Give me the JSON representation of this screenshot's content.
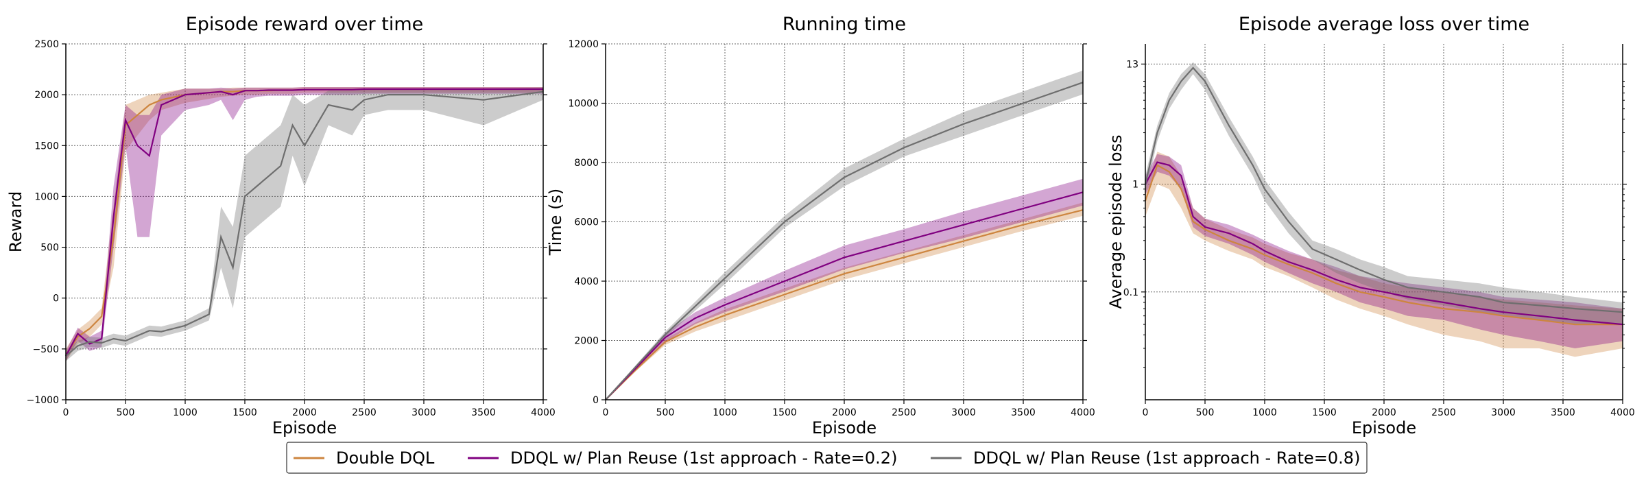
{
  "legend": [
    {
      "name": "Double DQL",
      "color": "#cd853f"
    },
    {
      "name": "DDQL w/ Plan Reuse (1st approach - Rate=0.2)",
      "color": "#800080"
    },
    {
      "name": "DDQL w/ Plan Reuse (1st approach - Rate=0.8)",
      "color": "#6e6e6e"
    }
  ],
  "chart_data": [
    {
      "type": "line",
      "title": "Episode reward over time",
      "xlabel": "Episode",
      "ylabel": "Reward",
      "xlim": [
        0,
        4000
      ],
      "ylim": [
        -1000,
        2500
      ],
      "xticks": [
        0,
        500,
        1000,
        1500,
        2000,
        2500,
        3000,
        3500,
        4000
      ],
      "yticks": [
        -1000,
        -500,
        0,
        500,
        1000,
        1500,
        2000,
        2500
      ],
      "ytick_labels": [
        "−1000",
        "−500",
        "0",
        "500",
        "1000",
        "1500",
        "2000",
        "2500"
      ],
      "grid": true,
      "x": [
        0,
        100,
        200,
        300,
        400,
        500,
        600,
        700,
        800,
        1000,
        1200,
        1300,
        1400,
        1500,
        1600,
        1700,
        1800,
        1900,
        2000,
        2200,
        2400,
        2500,
        2700,
        3000,
        3500,
        4000
      ],
      "series": [
        {
          "name": "Double DQL",
          "values": [
            -560,
            -380,
            -300,
            -180,
            600,
            1700,
            1800,
            1900,
            1950,
            2000,
            2020,
            2030,
            2030,
            2040,
            2040,
            2040,
            2045,
            2045,
            2050,
            2050,
            2050,
            2055,
            2055,
            2055,
            2055,
            2055
          ],
          "lower": [
            -620,
            -450,
            -380,
            -260,
            300,
            1450,
            1600,
            1750,
            1850,
            1920,
            1960,
            1980,
            1990,
            2000,
            2000,
            2010,
            2010,
            2010,
            2020,
            2020,
            2020,
            2020,
            2020,
            2020,
            2020,
            2020
          ],
          "upper": [
            -500,
            -310,
            -220,
            -100,
            900,
            1900,
            1950,
            2000,
            2020,
            2060,
            2060,
            2060,
            2070,
            2070,
            2070,
            2070,
            2070,
            2070,
            2075,
            2075,
            2075,
            2075,
            2075,
            2075,
            2075,
            2075
          ]
        },
        {
          "name": "DDQL w/ Plan Reuse (1st approach - Rate=0.2)",
          "values": [
            -570,
            -350,
            -450,
            -400,
            800,
            1750,
            1500,
            1400,
            1900,
            2000,
            2020,
            2030,
            2000,
            2040,
            2040,
            2045,
            2045,
            2045,
            2050,
            2050,
            2050,
            2055,
            2055,
            2055,
            2055,
            2055
          ],
          "lower": [
            -620,
            -420,
            -520,
            -480,
            500,
            1500,
            600,
            600,
            1600,
            1850,
            1900,
            1950,
            1750,
            1950,
            1980,
            1990,
            1990,
            1990,
            2000,
            2000,
            2000,
            2010,
            2010,
            2010,
            2010,
            2010
          ],
          "upper": [
            -520,
            -290,
            -380,
            -320,
            1100,
            1900,
            1800,
            1800,
            2000,
            2060,
            2060,
            2070,
            2060,
            2070,
            2070,
            2070,
            2070,
            2070,
            2075,
            2075,
            2075,
            2075,
            2075,
            2075,
            2075,
            2075
          ]
        },
        {
          "name": "DDQL w/ Plan Reuse (1st approach - Rate=0.8)",
          "values": [
            -570,
            -470,
            -430,
            -440,
            -400,
            -420,
            -370,
            -320,
            -330,
            -270,
            -160,
            600,
            300,
            1000,
            1100,
            1200,
            1300,
            1700,
            1500,
            1900,
            1850,
            1950,
            2000,
            2000,
            1950,
            2030
          ],
          "lower": [
            -620,
            -520,
            -480,
            -490,
            -450,
            -470,
            -420,
            -370,
            -380,
            -320,
            -220,
            300,
            -100,
            600,
            700,
            800,
            900,
            1400,
            1100,
            1700,
            1600,
            1800,
            1850,
            1850,
            1700,
            1950
          ],
          "upper": [
            -520,
            -420,
            -380,
            -390,
            -350,
            -370,
            -320,
            -270,
            -280,
            -220,
            -100,
            900,
            700,
            1400,
            1500,
            1600,
            1700,
            2000,
            1900,
            2040,
            2040,
            2050,
            2060,
            2060,
            2060,
            2070
          ]
        }
      ]
    },
    {
      "type": "line",
      "title": "Running time",
      "xlabel": "Episode",
      "ylabel": "Time (s)",
      "xlim": [
        0,
        4000
      ],
      "ylim": [
        0,
        12000
      ],
      "xticks": [
        0,
        500,
        1000,
        1500,
        2000,
        2500,
        3000,
        3500,
        4000
      ],
      "yticks": [
        0,
        2000,
        4000,
        6000,
        8000,
        10000,
        12000
      ],
      "ytick_labels": [
        "0",
        "2000",
        "4000",
        "6000",
        "8000",
        "10000",
        "12000"
      ],
      "grid": true,
      "x": [
        0,
        250,
        500,
        750,
        1000,
        1500,
        2000,
        2500,
        3000,
        3500,
        4000
      ],
      "series": [
        {
          "name": "Double DQL",
          "values": [
            0,
            1000,
            1950,
            2450,
            2850,
            3550,
            4250,
            4800,
            5350,
            5900,
            6400
          ],
          "lower": [
            0,
            950,
            1850,
            2300,
            2650,
            3350,
            4050,
            4600,
            5150,
            5700,
            6200
          ],
          "upper": [
            0,
            1050,
            2050,
            2600,
            3050,
            3750,
            4450,
            5000,
            5550,
            6100,
            6650
          ]
        },
        {
          "name": "DDQL w/ Plan Reuse (1st approach - Rate=0.2)",
          "values": [
            0,
            1050,
            2100,
            2750,
            3200,
            4000,
            4800,
            5350,
            5900,
            6450,
            7000
          ],
          "lower": [
            0,
            1000,
            1950,
            2550,
            2950,
            3650,
            4400,
            4950,
            5450,
            6000,
            6550
          ],
          "upper": [
            0,
            1100,
            2250,
            2950,
            3450,
            4350,
            5200,
            5750,
            6350,
            6900,
            7450
          ]
        },
        {
          "name": "DDQL w/ Plan Reuse (1st approach - Rate=0.8)",
          "values": [
            0,
            1100,
            2200,
            3150,
            4100,
            6000,
            7500,
            8500,
            9300,
            10000,
            10700
          ],
          "lower": [
            0,
            1050,
            2100,
            3000,
            3900,
            5800,
            7200,
            8200,
            8900,
            9600,
            10300
          ],
          "upper": [
            0,
            1150,
            2300,
            3300,
            4300,
            6200,
            7800,
            8800,
            9700,
            10400,
            11100
          ]
        }
      ]
    },
    {
      "type": "line",
      "title": "Episode average loss over time",
      "xlabel": "Episode",
      "ylabel": "Average episode loss",
      "xlim": [
        0,
        4000
      ],
      "yscale": "log",
      "ylim": [
        0.01,
        20
      ],
      "xticks": [
        0,
        500,
        1000,
        1500,
        2000,
        2500,
        3000,
        3500,
        4000
      ],
      "yticks": [
        0.1,
        1,
        13
      ],
      "ytick_labels": [
        "0.1",
        "1",
        "13"
      ],
      "grid": true,
      "x": [
        0,
        100,
        200,
        300,
        400,
        500,
        700,
        900,
        1000,
        1200,
        1400,
        1600,
        1800,
        2000,
        2200,
        2500,
        2800,
        3000,
        3300,
        3600,
        4000
      ],
      "series": [
        {
          "name": "Double DQL",
          "values": [
            0.7,
            1.5,
            1.3,
            0.9,
            0.45,
            0.38,
            0.3,
            0.25,
            0.22,
            0.18,
            0.15,
            0.12,
            0.1,
            0.09,
            0.08,
            0.07,
            0.065,
            0.06,
            0.055,
            0.05,
            0.05
          ],
          "lower": [
            0.5,
            1.0,
            0.9,
            0.6,
            0.35,
            0.3,
            0.24,
            0.2,
            0.17,
            0.14,
            0.11,
            0.085,
            0.07,
            0.06,
            0.05,
            0.04,
            0.035,
            0.03,
            0.03,
            0.025,
            0.03
          ],
          "upper": [
            0.9,
            2.0,
            1.8,
            1.2,
            0.6,
            0.48,
            0.38,
            0.32,
            0.28,
            0.23,
            0.2,
            0.16,
            0.14,
            0.12,
            0.11,
            0.1,
            0.09,
            0.085,
            0.08,
            0.075,
            0.07
          ]
        },
        {
          "name": "DDQL w/ Plan Reuse (1st approach - Rate=0.2)",
          "values": [
            1.0,
            1.6,
            1.5,
            1.2,
            0.5,
            0.4,
            0.35,
            0.28,
            0.24,
            0.19,
            0.16,
            0.13,
            0.11,
            0.1,
            0.09,
            0.08,
            0.07,
            0.065,
            0.06,
            0.055,
            0.05
          ],
          "lower": [
            0.8,
            1.3,
            1.2,
            0.9,
            0.4,
            0.33,
            0.28,
            0.22,
            0.19,
            0.15,
            0.12,
            0.1,
            0.08,
            0.07,
            0.06,
            0.055,
            0.045,
            0.04,
            0.035,
            0.03,
            0.035
          ],
          "upper": [
            1.2,
            1.9,
            1.8,
            1.5,
            0.6,
            0.48,
            0.42,
            0.34,
            0.3,
            0.24,
            0.2,
            0.17,
            0.14,
            0.13,
            0.12,
            0.11,
            0.1,
            0.09,
            0.085,
            0.08,
            0.07
          ]
        },
        {
          "name": "DDQL w/ Plan Reuse (1st approach - Rate=0.8)",
          "values": [
            1.0,
            3.0,
            6.0,
            9.0,
            12.0,
            9.0,
            3.5,
            1.5,
            0.9,
            0.45,
            0.25,
            0.2,
            0.16,
            0.13,
            0.11,
            0.1,
            0.09,
            0.08,
            0.075,
            0.07,
            0.065
          ],
          "lower": [
            0.8,
            2.5,
            5.0,
            7.5,
            10.5,
            7.5,
            2.8,
            1.2,
            0.7,
            0.35,
            0.2,
            0.15,
            0.12,
            0.1,
            0.085,
            0.075,
            0.065,
            0.06,
            0.055,
            0.05,
            0.05
          ],
          "upper": [
            1.2,
            3.5,
            7.0,
            10.5,
            13.5,
            10.5,
            4.2,
            1.8,
            1.1,
            0.55,
            0.3,
            0.25,
            0.2,
            0.17,
            0.14,
            0.13,
            0.12,
            0.11,
            0.1,
            0.09,
            0.08
          ]
        }
      ]
    }
  ]
}
